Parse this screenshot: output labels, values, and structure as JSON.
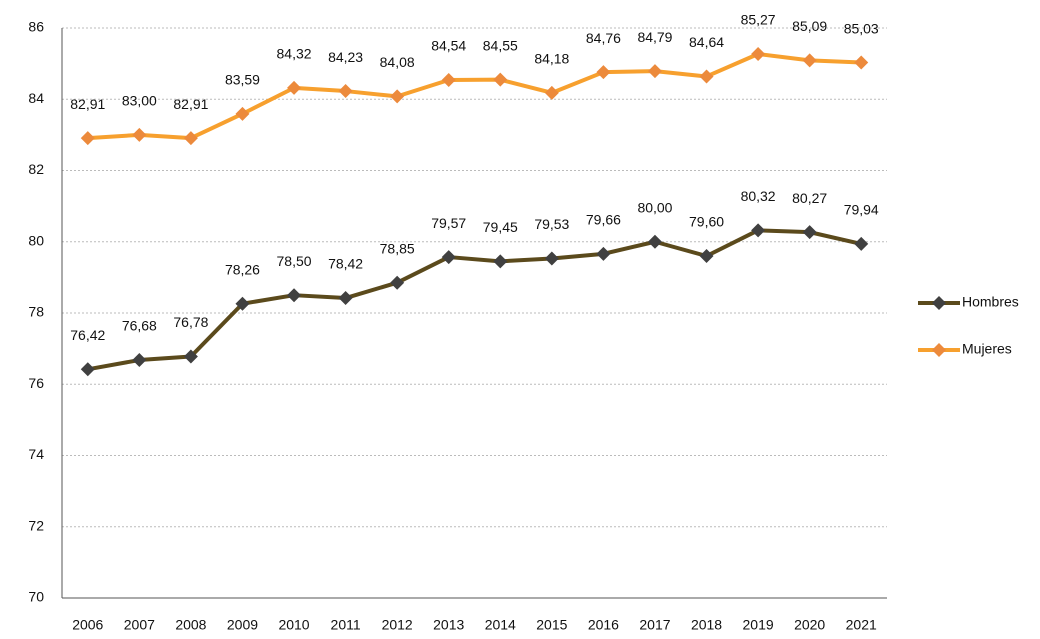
{
  "chart_data": {
    "type": "line",
    "categories": [
      "2006",
      "2007",
      "2008",
      "2009",
      "2010",
      "2011",
      "2012",
      "2013",
      "2014",
      "2015",
      "2016",
      "2017",
      "2018",
      "2019",
      "2020",
      "2021"
    ],
    "series": [
      {
        "name": "Hombres",
        "color": "#5b4a1c",
        "marker_color": "#404040",
        "values": [
          76.42,
          76.68,
          76.78,
          78.26,
          78.5,
          78.42,
          78.85,
          79.57,
          79.45,
          79.53,
          79.66,
          80.0,
          79.6,
          80.32,
          80.27,
          79.94
        ],
        "value_labels": [
          "76,42",
          "76,68",
          "76,78",
          "78,26",
          "78,50",
          "78,42",
          "78,85",
          "79,57",
          "79,45",
          "79,53",
          "79,66",
          "80,00",
          "79,60",
          "80,32",
          "80,27",
          "79,94"
        ]
      },
      {
        "name": "Mujeres",
        "color": "#f7a02e",
        "marker_color": "#ec8a3c",
        "values": [
          82.91,
          83.0,
          82.91,
          83.59,
          84.32,
          84.23,
          84.08,
          84.54,
          84.55,
          84.18,
          84.76,
          84.79,
          84.64,
          85.27,
          85.09,
          85.03
        ],
        "value_labels": [
          "82,91",
          "83,00",
          "82,91",
          "83,59",
          "84,32",
          "84,23",
          "84,08",
          "84,54",
          "84,55",
          "84,18",
          "84,76",
          "84,79",
          "84,64",
          "85,27",
          "85,09",
          "85,03"
        ]
      }
    ],
    "ylim": [
      70,
      86
    ],
    "yticks": [
      70,
      72,
      74,
      76,
      78,
      80,
      82,
      84,
      86
    ],
    "grid": true,
    "legend": "right"
  }
}
